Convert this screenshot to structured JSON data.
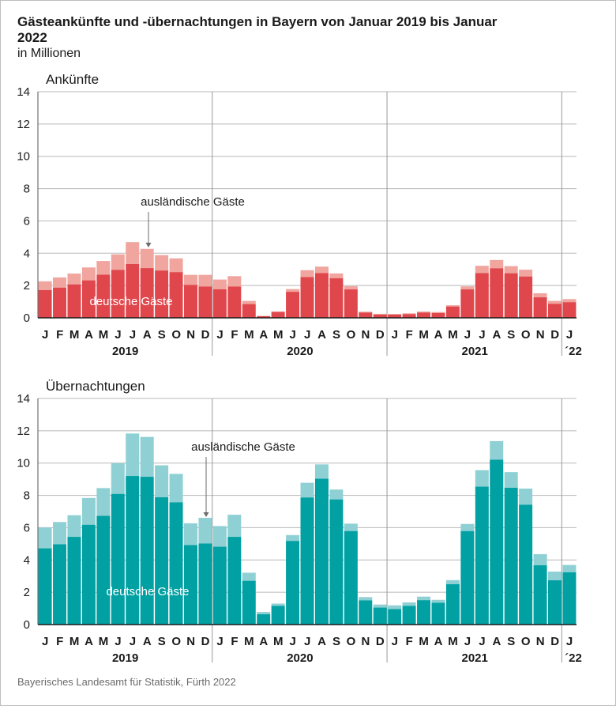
{
  "header": {
    "title": "Gästeankünfte und -übernachtungen in Bayern von Januar 2019 bis Januar 2022",
    "subtitle": "in Millionen"
  },
  "source": "Bayerisches Landesamt für Statistik, Fürth 2022",
  "colors": {
    "arrivals_domestic": "#e0474c",
    "arrivals_foreign": "#f0a59e",
    "nights_domestic": "#00a0a3",
    "nights_foreign": "#8fd0d4",
    "gridline": "#b8b8b8"
  },
  "x_axis": {
    "month_labels": [
      "J",
      "F",
      "M",
      "A",
      "M",
      "J",
      "J",
      "A",
      "S",
      "O",
      "N",
      "D",
      "J",
      "F",
      "M",
      "A",
      "M",
      "J",
      "J",
      "A",
      "S",
      "O",
      "N",
      "D",
      "J",
      "F",
      "M",
      "A",
      "M",
      "J",
      "J",
      "A",
      "S",
      "O",
      "N",
      "D",
      "J"
    ],
    "year_labels": [
      "2019",
      "2020",
      "2021",
      "´22"
    ]
  },
  "chart_data": [
    {
      "type": "bar",
      "stacked": true,
      "title": "Ankünfte",
      "ylim": [
        0,
        14
      ],
      "yticks": [
        0,
        2,
        4,
        6,
        8,
        10,
        12,
        14
      ],
      "grid": true,
      "categories": [
        "Jan 2019",
        "Feb 2019",
        "Mar 2019",
        "Apr 2019",
        "May 2019",
        "Jun 2019",
        "Jul 2019",
        "Aug 2019",
        "Sep 2019",
        "Oct 2019",
        "Nov 2019",
        "Dec 2019",
        "Jan 2020",
        "Feb 2020",
        "Mar 2020",
        "Apr 2020",
        "May 2020",
        "Jun 2020",
        "Jul 2020",
        "Aug 2020",
        "Sep 2020",
        "Oct 2020",
        "Nov 2020",
        "Dec 2020",
        "Jan 2021",
        "Feb 2021",
        "Mar 2021",
        "Apr 2021",
        "May 2021",
        "Jun 2021",
        "Jul 2021",
        "Aug 2021",
        "Sep 2021",
        "Oct 2021",
        "Nov 2021",
        "Dec 2021",
        "Jan 2022"
      ],
      "series": [
        {
          "name": "deutsche Gäste",
          "values": [
            1.72,
            1.87,
            2.07,
            2.32,
            2.67,
            2.97,
            3.33,
            3.08,
            2.93,
            2.83,
            2.04,
            1.94,
            1.77,
            1.94,
            0.85,
            0.1,
            0.36,
            1.61,
            2.52,
            2.77,
            2.45,
            1.76,
            0.33,
            0.2,
            0.2,
            0.23,
            0.33,
            0.3,
            0.7,
            1.76,
            2.77,
            3.07,
            2.76,
            2.56,
            1.27,
            0.87,
            0.97
          ]
        },
        {
          "name": "ausländische Gäste",
          "values": [
            0.54,
            0.63,
            0.67,
            0.8,
            0.85,
            0.96,
            1.36,
            1.19,
            0.95,
            0.85,
            0.62,
            0.72,
            0.6,
            0.64,
            0.2,
            0.02,
            0.04,
            0.17,
            0.43,
            0.4,
            0.3,
            0.2,
            0.05,
            0.05,
            0.04,
            0.05,
            0.06,
            0.06,
            0.08,
            0.19,
            0.45,
            0.51,
            0.44,
            0.42,
            0.25,
            0.18,
            0.19
          ]
        }
      ],
      "annotations": [
        "ausländische Gäste",
        "deutsche Gäste"
      ]
    },
    {
      "type": "bar",
      "stacked": true,
      "title": "Übernachtungen",
      "ylim": [
        0,
        14
      ],
      "yticks": [
        0,
        2,
        4,
        6,
        8,
        10,
        12,
        14
      ],
      "grid": true,
      "categories": [
        "Jan 2019",
        "Feb 2019",
        "Mar 2019",
        "Apr 2019",
        "May 2019",
        "Jun 2019",
        "Jul 2019",
        "Aug 2019",
        "Sep 2019",
        "Oct 2019",
        "Nov 2019",
        "Dec 2019",
        "Jan 2020",
        "Feb 2020",
        "Mar 2020",
        "Apr 2020",
        "May 2020",
        "Jun 2020",
        "Jul 2020",
        "Aug 2020",
        "Sep 2020",
        "Oct 2020",
        "Nov 2020",
        "Dec 2020",
        "Jan 2021",
        "Feb 2021",
        "Mar 2021",
        "Apr 2021",
        "May 2021",
        "Jun 2021",
        "Jul 2021",
        "Aug 2021",
        "Sep 2021",
        "Oct 2021",
        "Nov 2021",
        "Dec 2021",
        "Jan 2022"
      ],
      "series": [
        {
          "name": "deutsche Gäste",
          "values": [
            4.72,
            4.97,
            5.43,
            6.18,
            6.73,
            8.09,
            9.2,
            9.15,
            7.88,
            7.57,
            4.92,
            5.02,
            4.82,
            5.43,
            2.71,
            0.64,
            1.16,
            5.18,
            7.87,
            9.03,
            7.75,
            5.79,
            1.5,
            1.05,
            0.96,
            1.16,
            1.51,
            1.35,
            2.5,
            5.79,
            8.54,
            10.21,
            8.47,
            7.42,
            3.67,
            2.74,
            3.24
          ]
        },
        {
          "name": "ausländische Gäste",
          "values": [
            1.29,
            1.38,
            1.34,
            1.66,
            1.72,
            1.9,
            2.63,
            2.47,
            1.98,
            1.76,
            1.35,
            1.59,
            1.28,
            1.37,
            0.5,
            0.14,
            0.14,
            0.36,
            0.91,
            0.89,
            0.61,
            0.46,
            0.2,
            0.19,
            0.23,
            0.21,
            0.22,
            0.18,
            0.25,
            0.44,
            1.02,
            1.15,
            0.97,
            1.0,
            0.69,
            0.54,
            0.45
          ]
        }
      ],
      "annotations": [
        "ausländische Gäste",
        "deutsche Gäste"
      ]
    }
  ]
}
